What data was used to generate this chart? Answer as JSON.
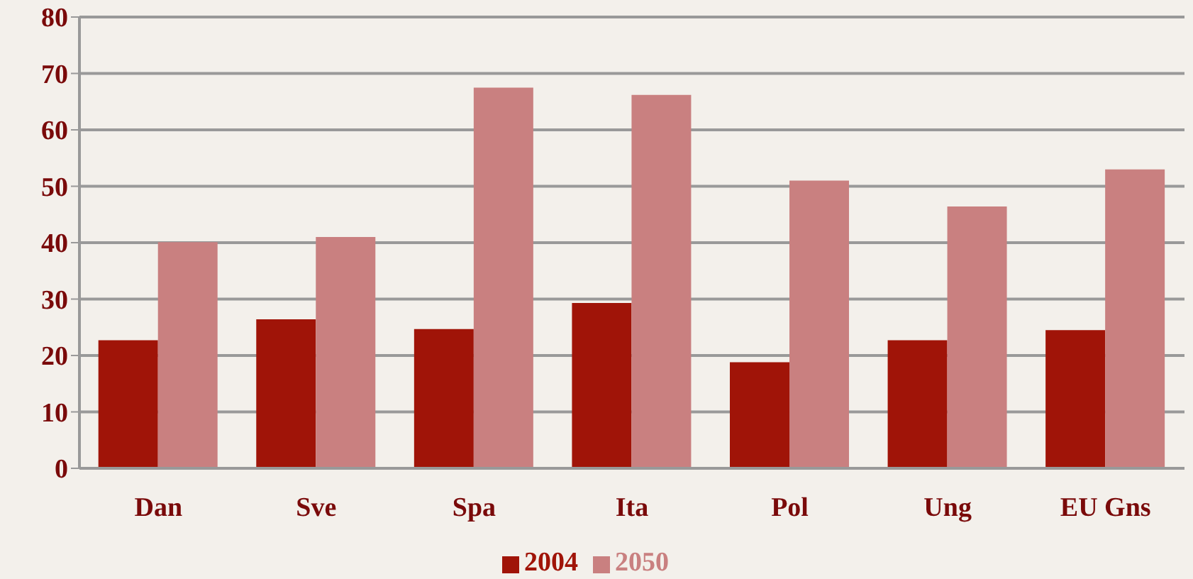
{
  "chart_data": {
    "type": "bar",
    "categories": [
      "Dan",
      "Sve",
      "Spa",
      "Ita",
      "Pol",
      "Ung",
      "EU Gns"
    ],
    "series": [
      {
        "name": "2004",
        "color": "#a01408",
        "values": [
          22.7,
          26.4,
          24.7,
          29.3,
          18.8,
          22.7,
          24.5
        ]
      },
      {
        "name": "2050",
        "color": "#c98080",
        "values": [
          40.1,
          41.0,
          67.5,
          66.2,
          51.0,
          46.4,
          53.0
        ]
      }
    ],
    "ylim": [
      0,
      80
    ],
    "yticks": [
      0,
      10,
      20,
      30,
      40,
      50,
      60,
      70,
      80
    ],
    "grid": "y",
    "legend": "bottom"
  }
}
